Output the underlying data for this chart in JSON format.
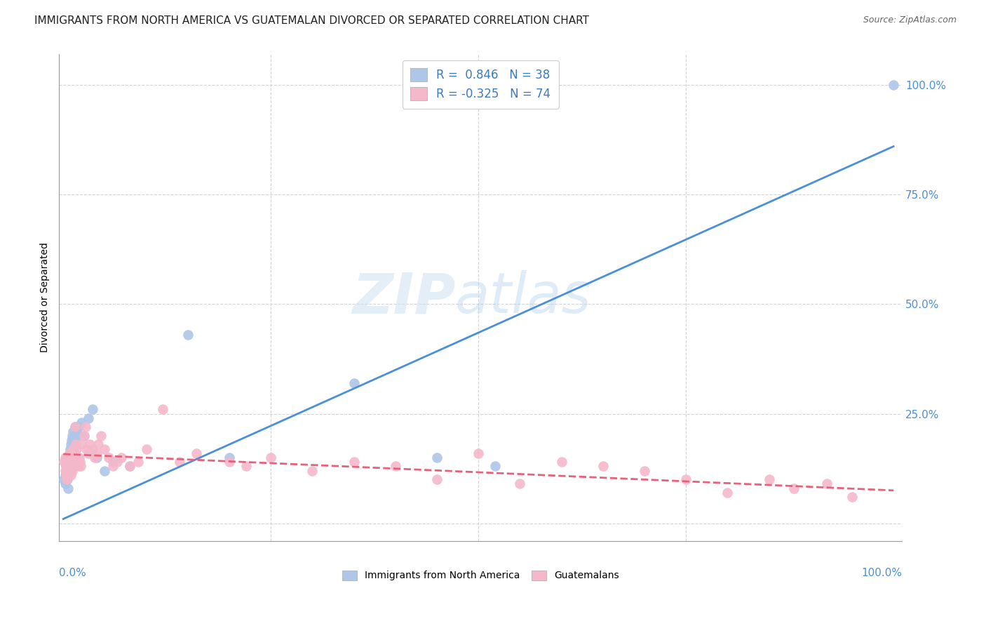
{
  "title": "IMMIGRANTS FROM NORTH AMERICA VS GUATEMALAN DIVORCED OR SEPARATED CORRELATION CHART",
  "source": "Source: ZipAtlas.com",
  "ylabel": "Divorced or Separated",
  "series": [
    {
      "label": "Immigrants from North America",
      "R": 0.846,
      "N": 38,
      "color": "#aec6e8",
      "line_color": "#4a90d9",
      "x": [
        0.001,
        0.002,
        0.002,
        0.003,
        0.003,
        0.004,
        0.005,
        0.005,
        0.006,
        0.006,
        0.007,
        0.007,
        0.008,
        0.009,
        0.009,
        0.01,
        0.011,
        0.012,
        0.013,
        0.014,
        0.015,
        0.016,
        0.018,
        0.02,
        0.022,
        0.025,
        0.03,
        0.035,
        0.04,
        0.05,
        0.06,
        0.08,
        0.15,
        0.2,
        0.35,
        0.45,
        0.52,
        1.0
      ],
      "y": [
        0.1,
        0.09,
        0.11,
        0.12,
        0.13,
        0.14,
        0.1,
        0.15,
        0.12,
        0.08,
        0.13,
        0.16,
        0.17,
        0.18,
        0.15,
        0.19,
        0.2,
        0.21,
        0.18,
        0.22,
        0.2,
        0.21,
        0.22,
        0.2,
        0.23,
        0.2,
        0.24,
        0.26,
        0.15,
        0.12,
        0.14,
        0.13,
        0.43,
        0.15,
        0.32,
        0.15,
        0.13,
        1.0
      ],
      "trend_x": [
        0.0,
        1.0
      ],
      "trend_y": [
        0.01,
        0.86
      ],
      "linestyle": "solid"
    },
    {
      "label": "Guatemalans",
      "R": -0.325,
      "N": 74,
      "color": "#f5b8cb",
      "line_color": "#e8607a",
      "x": [
        0.001,
        0.002,
        0.002,
        0.003,
        0.003,
        0.004,
        0.004,
        0.005,
        0.005,
        0.006,
        0.006,
        0.007,
        0.007,
        0.008,
        0.008,
        0.009,
        0.009,
        0.01,
        0.01,
        0.011,
        0.011,
        0.012,
        0.012,
        0.013,
        0.013,
        0.014,
        0.015,
        0.015,
        0.016,
        0.017,
        0.018,
        0.019,
        0.02,
        0.021,
        0.022,
        0.025,
        0.027,
        0.028,
        0.03,
        0.032,
        0.035,
        0.038,
        0.04,
        0.042,
        0.045,
        0.05,
        0.055,
        0.06,
        0.065,
        0.07,
        0.08,
        0.09,
        0.1,
        0.12,
        0.14,
        0.16,
        0.2,
        0.22,
        0.25,
        0.3,
        0.35,
        0.4,
        0.45,
        0.5,
        0.55,
        0.6,
        0.65,
        0.7,
        0.75,
        0.8,
        0.85,
        0.88,
        0.92,
        0.95
      ],
      "y": [
        0.14,
        0.12,
        0.15,
        0.11,
        0.14,
        0.1,
        0.13,
        0.12,
        0.15,
        0.11,
        0.14,
        0.13,
        0.16,
        0.12,
        0.15,
        0.11,
        0.14,
        0.13,
        0.16,
        0.12,
        0.15,
        0.14,
        0.17,
        0.13,
        0.16,
        0.22,
        0.15,
        0.18,
        0.17,
        0.14,
        0.13,
        0.15,
        0.14,
        0.13,
        0.18,
        0.2,
        0.22,
        0.17,
        0.16,
        0.18,
        0.17,
        0.15,
        0.16,
        0.18,
        0.2,
        0.17,
        0.15,
        0.13,
        0.14,
        0.15,
        0.13,
        0.14,
        0.17,
        0.26,
        0.14,
        0.16,
        0.14,
        0.13,
        0.15,
        0.12,
        0.14,
        0.13,
        0.1,
        0.16,
        0.09,
        0.14,
        0.13,
        0.12,
        0.1,
        0.07,
        0.1,
        0.08,
        0.09,
        0.06
      ],
      "trend_x": [
        0.0,
        1.0
      ],
      "trend_y": [
        0.158,
        0.075
      ],
      "linestyle": "dashed"
    }
  ],
  "watermark_zip": "ZIP",
  "watermark_atlas": "atlas",
  "yticks": [
    0.0,
    0.25,
    0.5,
    0.75,
    1.0
  ],
  "ytick_labels": [
    "",
    "25.0%",
    "50.0%",
    "75.0%",
    "100.0%"
  ],
  "xticks": [
    0.0,
    0.25,
    0.5,
    0.75,
    1.0
  ],
  "grid_color": "#d0d0d0",
  "background_color": "#ffffff",
  "title_fontsize": 11,
  "source_fontsize": 9,
  "legend_r_color": "#3a7abf",
  "right_tick_color": "#4a90d9",
  "bottom_label_color": "#4a90d9"
}
